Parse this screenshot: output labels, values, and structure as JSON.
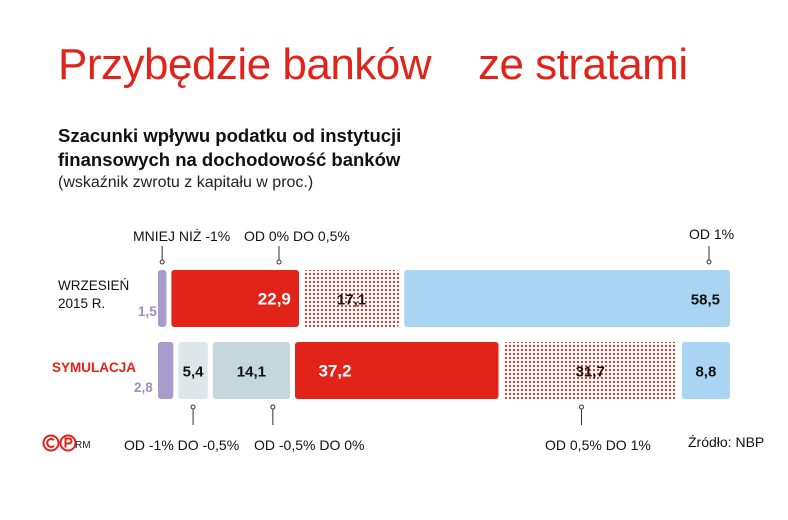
{
  "title": "Przybędzie banków    ze stratami",
  "subtitle": "Szacunki wpływu podatku od instytucji finansowych na dochodowość banków",
  "note": "(wskaźnik zwrotu z kapitału w proc.)",
  "row_labels": {
    "row1": "WRZESIEŃ\n2015 R.",
    "row2": "SYMULACJA"
  },
  "outside_values": {
    "row1": "1,5",
    "row2": "2,8"
  },
  "category_labels": {
    "less_than_minus1": "MNIEJ NIŻ -1%",
    "from0_to05": "OD 0% DO 0,5%",
    "from1": "OD 1%",
    "minus1_to_minus05": "OD -1% DO -0,5%",
    "minus05_to0": "OD -0,5% DO 0%",
    "from05_to1": "OD 0,5% DO 1%"
  },
  "footer": {
    "copyright": "©℗",
    "author": "RM",
    "source": "Źródło: NBP"
  },
  "colors": {
    "purple": "#a79bcc",
    "red": "#e2231a",
    "dotted": "#e2231a",
    "light_blue": "#aad5f2",
    "gray_blue": "#c4d7dc",
    "very_light": "#dde7ea"
  },
  "chart_data": {
    "type": "bar",
    "stacked": true,
    "orientation": "horizontal",
    "categories": [
      "WRZESIEŃ 2015 R.",
      "SYMULACJA"
    ],
    "segments": [
      {
        "category": "MNIEJ NIŻ -1%",
        "values": [
          1.5,
          2.8
        ],
        "style": "purple"
      },
      {
        "category": "OD -1% DO -0,5%",
        "values": [
          0,
          5.4
        ],
        "style": "very_light"
      },
      {
        "category": "OD -0,5% DO 0%",
        "values": [
          0,
          14.1
        ],
        "style": "gray_blue"
      },
      {
        "category": "OD 0% DO 0,5%",
        "values": [
          22.9,
          37.2
        ],
        "style": "red"
      },
      {
        "category": "OD 0,5% DO 1%",
        "values": [
          17.1,
          31.7
        ],
        "style": "dotted"
      },
      {
        "category": "OD 1%",
        "values": [
          58.5,
          8.8
        ],
        "style": "light_blue"
      }
    ],
    "data_labels": {
      "row1": [
        "1,5",
        "",
        "",
        "22,9",
        "17,1",
        "58,5"
      ],
      "row2": [
        "2,8",
        "5,4",
        "14,1",
        "37,2",
        "31,7",
        "8,8"
      ]
    }
  }
}
